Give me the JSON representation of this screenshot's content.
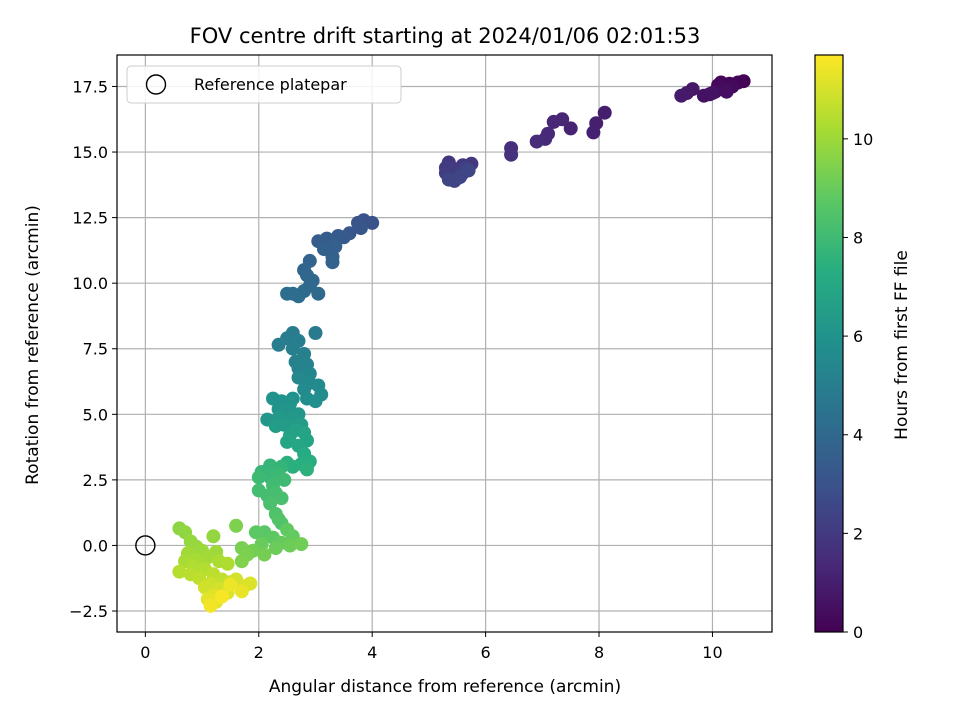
{
  "chart_data": {
    "type": "scatter",
    "title": "FOV centre drift starting at 2024/01/06 02:01:53",
    "xlabel": "Angular distance from reference (arcmin)",
    "ylabel": "Rotation from reference (arcmin)",
    "xlim": [
      -0.5,
      11.05
    ],
    "ylim": [
      -3.3,
      18.7
    ],
    "xticks": [
      0,
      2,
      4,
      6,
      8,
      10
    ],
    "xtick_labels": [
      "0",
      "2",
      "4",
      "6",
      "8",
      "10"
    ],
    "yticks": [
      -2.5,
      0.0,
      2.5,
      5.0,
      7.5,
      10.0,
      12.5,
      15.0,
      17.5
    ],
    "ytick_labels": [
      "−2.5",
      "0.0",
      "2.5",
      "5.0",
      "7.5",
      "10.0",
      "12.5",
      "15.0",
      "17.5"
    ],
    "grid": true,
    "legend": {
      "placement": "upper-left",
      "entries": [
        {
          "label": "Reference platepar",
          "marker": "open-circle"
        }
      ]
    },
    "reference_point": {
      "x": 0.0,
      "y": 0.0
    },
    "colorbar": {
      "label": "Hours from first FF file",
      "range": [
        0,
        11.7
      ],
      "ticks": [
        0,
        2,
        4,
        6,
        8,
        10
      ],
      "tick_labels": [
        "0",
        "2",
        "4",
        "6",
        "8",
        "10"
      ],
      "colormap": "viridis"
    },
    "series": [
      {
        "points": [
          {
            "x": 10.55,
            "y": 17.7,
            "t": 0.05
          },
          {
            "x": 10.45,
            "y": 17.65,
            "t": 0.1
          },
          {
            "x": 10.3,
            "y": 17.6,
            "t": 0.15
          },
          {
            "x": 10.15,
            "y": 17.65,
            "t": 0.2
          },
          {
            "x": 10.1,
            "y": 17.55,
            "t": 0.25
          },
          {
            "x": 10.35,
            "y": 17.5,
            "t": 0.3
          },
          {
            "x": 10.2,
            "y": 17.4,
            "t": 0.35
          },
          {
            "x": 10.05,
            "y": 17.3,
            "t": 0.4
          },
          {
            "x": 10.25,
            "y": 17.3,
            "t": 0.45
          },
          {
            "x": 9.95,
            "y": 17.2,
            "t": 0.5
          },
          {
            "x": 9.85,
            "y": 17.15,
            "t": 0.55
          },
          {
            "x": 10.0,
            "y": 17.25,
            "t": 0.6
          },
          {
            "x": 9.65,
            "y": 17.4,
            "t": 0.75
          },
          {
            "x": 9.55,
            "y": 17.25,
            "t": 0.8
          },
          {
            "x": 9.45,
            "y": 17.15,
            "t": 0.85
          },
          {
            "x": 8.1,
            "y": 16.5,
            "t": 1.0
          },
          {
            "x": 7.95,
            "y": 16.1,
            "t": 1.05
          },
          {
            "x": 7.9,
            "y": 15.75,
            "t": 1.1
          },
          {
            "x": 7.5,
            "y": 15.9,
            "t": 1.2
          },
          {
            "x": 7.35,
            "y": 16.25,
            "t": 1.25
          },
          {
            "x": 7.2,
            "y": 16.15,
            "t": 1.3
          },
          {
            "x": 7.1,
            "y": 15.7,
            "t": 1.35
          },
          {
            "x": 7.05,
            "y": 15.5,
            "t": 1.4
          },
          {
            "x": 6.9,
            "y": 15.4,
            "t": 1.45
          },
          {
            "x": 6.45,
            "y": 15.15,
            "t": 1.6
          },
          {
            "x": 6.45,
            "y": 14.9,
            "t": 1.65
          },
          {
            "x": 5.75,
            "y": 14.55,
            "t": 1.85
          },
          {
            "x": 5.6,
            "y": 14.5,
            "t": 1.9
          },
          {
            "x": 5.35,
            "y": 14.6,
            "t": 1.95
          },
          {
            "x": 5.3,
            "y": 14.4,
            "t": 2.0
          },
          {
            "x": 5.45,
            "y": 14.35,
            "t": 2.05
          },
          {
            "x": 5.3,
            "y": 14.2,
            "t": 2.1
          },
          {
            "x": 5.4,
            "y": 14.1,
            "t": 2.15
          },
          {
            "x": 5.5,
            "y": 14.0,
            "t": 2.2
          },
          {
            "x": 5.6,
            "y": 14.2,
            "t": 2.25
          },
          {
            "x": 5.65,
            "y": 14.4,
            "t": 2.3
          },
          {
            "x": 5.45,
            "y": 13.9,
            "t": 2.35
          },
          {
            "x": 5.35,
            "y": 13.95,
            "t": 2.4
          },
          {
            "x": 5.55,
            "y": 14.05,
            "t": 2.45
          },
          {
            "x": 5.7,
            "y": 14.3,
            "t": 2.5
          },
          {
            "x": 4.0,
            "y": 12.3,
            "t": 3.0
          },
          {
            "x": 3.85,
            "y": 12.4,
            "t": 3.05
          },
          {
            "x": 3.75,
            "y": 12.3,
            "t": 3.1
          },
          {
            "x": 3.8,
            "y": 12.1,
            "t": 3.15
          },
          {
            "x": 3.6,
            "y": 11.9,
            "t": 3.2
          },
          {
            "x": 3.5,
            "y": 11.75,
            "t": 3.3
          },
          {
            "x": 3.4,
            "y": 11.8,
            "t": 3.35
          },
          {
            "x": 3.3,
            "y": 11.6,
            "t": 3.4
          },
          {
            "x": 3.2,
            "y": 11.7,
            "t": 3.45
          },
          {
            "x": 3.05,
            "y": 11.6,
            "t": 3.5
          },
          {
            "x": 3.35,
            "y": 11.4,
            "t": 3.55
          },
          {
            "x": 3.15,
            "y": 11.3,
            "t": 3.6
          },
          {
            "x": 3.3,
            "y": 11.0,
            "t": 3.65
          },
          {
            "x": 3.3,
            "y": 10.8,
            "t": 3.7
          },
          {
            "x": 2.9,
            "y": 10.85,
            "t": 3.8
          },
          {
            "x": 2.8,
            "y": 10.5,
            "t": 3.85
          },
          {
            "x": 2.85,
            "y": 10.3,
            "t": 3.9
          },
          {
            "x": 2.95,
            "y": 10.1,
            "t": 3.95
          },
          {
            "x": 2.9,
            "y": 9.9,
            "t": 4.0
          },
          {
            "x": 3.05,
            "y": 9.6,
            "t": 4.05
          },
          {
            "x": 2.8,
            "y": 9.7,
            "t": 4.1
          },
          {
            "x": 2.7,
            "y": 9.5,
            "t": 4.15
          },
          {
            "x": 2.6,
            "y": 9.6,
            "t": 4.2
          },
          {
            "x": 2.5,
            "y": 9.6,
            "t": 4.25
          },
          {
            "x": 3.0,
            "y": 8.1,
            "t": 4.8
          },
          {
            "x": 2.6,
            "y": 8.1,
            "t": 4.85
          },
          {
            "x": 2.5,
            "y": 7.9,
            "t": 4.9
          },
          {
            "x": 2.35,
            "y": 7.65,
            "t": 4.95
          },
          {
            "x": 2.7,
            "y": 7.8,
            "t": 5.0
          },
          {
            "x": 2.6,
            "y": 7.5,
            "t": 5.05
          },
          {
            "x": 2.8,
            "y": 7.3,
            "t": 5.1
          },
          {
            "x": 2.65,
            "y": 7.0,
            "t": 5.15
          },
          {
            "x": 2.85,
            "y": 6.9,
            "t": 5.2
          },
          {
            "x": 2.7,
            "y": 6.75,
            "t": 5.25
          },
          {
            "x": 2.9,
            "y": 6.55,
            "t": 5.4
          },
          {
            "x": 2.7,
            "y": 6.4,
            "t": 5.45
          },
          {
            "x": 2.9,
            "y": 6.2,
            "t": 5.5
          },
          {
            "x": 3.05,
            "y": 6.1,
            "t": 5.55
          },
          {
            "x": 2.8,
            "y": 5.95,
            "t": 5.6
          },
          {
            "x": 3.1,
            "y": 5.75,
            "t": 5.65
          },
          {
            "x": 2.85,
            "y": 5.6,
            "t": 5.7
          },
          {
            "x": 3.0,
            "y": 5.5,
            "t": 5.75
          },
          {
            "x": 2.6,
            "y": 5.6,
            "t": 5.9
          },
          {
            "x": 2.4,
            "y": 5.5,
            "t": 5.95
          },
          {
            "x": 2.25,
            "y": 5.6,
            "t": 6.0
          },
          {
            "x": 2.55,
            "y": 5.4,
            "t": 6.05
          },
          {
            "x": 2.35,
            "y": 5.2,
            "t": 6.1
          },
          {
            "x": 2.5,
            "y": 5.1,
            "t": 6.15
          },
          {
            "x": 2.7,
            "y": 5.0,
            "t": 6.2
          },
          {
            "x": 2.15,
            "y": 4.8,
            "t": 6.25
          },
          {
            "x": 2.35,
            "y": 4.85,
            "t": 6.3
          },
          {
            "x": 2.6,
            "y": 4.8,
            "t": 6.35
          },
          {
            "x": 2.45,
            "y": 4.6,
            "t": 6.4
          },
          {
            "x": 2.3,
            "y": 4.55,
            "t": 6.45
          },
          {
            "x": 2.75,
            "y": 4.6,
            "t": 6.5
          },
          {
            "x": 2.65,
            "y": 4.4,
            "t": 6.7
          },
          {
            "x": 2.55,
            "y": 4.2,
            "t": 6.75
          },
          {
            "x": 2.8,
            "y": 4.3,
            "t": 6.8
          },
          {
            "x": 2.85,
            "y": 4.0,
            "t": 6.85
          },
          {
            "x": 2.5,
            "y": 3.95,
            "t": 6.9
          },
          {
            "x": 2.7,
            "y": 3.8,
            "t": 6.95
          },
          {
            "x": 2.8,
            "y": 3.5,
            "t": 7.2
          },
          {
            "x": 2.9,
            "y": 3.2,
            "t": 7.3
          },
          {
            "x": 2.75,
            "y": 3.1,
            "t": 7.35
          },
          {
            "x": 2.6,
            "y": 3.0,
            "t": 7.4
          },
          {
            "x": 2.5,
            "y": 3.15,
            "t": 7.45
          },
          {
            "x": 2.85,
            "y": 2.9,
            "t": 7.5
          },
          {
            "x": 2.4,
            "y": 3.0,
            "t": 7.7
          },
          {
            "x": 2.2,
            "y": 3.05,
            "t": 7.75
          },
          {
            "x": 2.05,
            "y": 2.8,
            "t": 7.8
          },
          {
            "x": 2.2,
            "y": 2.6,
            "t": 7.85
          },
          {
            "x": 2.35,
            "y": 2.7,
            "t": 7.9
          },
          {
            "x": 2.0,
            "y": 2.6,
            "t": 7.95
          },
          {
            "x": 2.45,
            "y": 2.5,
            "t": 8.0
          },
          {
            "x": 2.25,
            "y": 2.3,
            "t": 8.05
          },
          {
            "x": 2.0,
            "y": 2.1,
            "t": 8.1
          },
          {
            "x": 2.15,
            "y": 1.9,
            "t": 8.15
          },
          {
            "x": 2.3,
            "y": 2.0,
            "t": 8.2
          },
          {
            "x": 2.4,
            "y": 1.8,
            "t": 8.25
          },
          {
            "x": 2.2,
            "y": 1.6,
            "t": 8.3
          },
          {
            "x": 2.3,
            "y": 1.2,
            "t": 8.4
          },
          {
            "x": 2.4,
            "y": 0.85,
            "t": 8.45
          },
          {
            "x": 2.35,
            "y": 1.0,
            "t": 8.5
          },
          {
            "x": 2.1,
            "y": 0.5,
            "t": 8.7
          },
          {
            "x": 1.95,
            "y": 0.5,
            "t": 8.75
          },
          {
            "x": 2.25,
            "y": 0.3,
            "t": 8.8
          },
          {
            "x": 2.5,
            "y": 0.6,
            "t": 8.85
          },
          {
            "x": 2.6,
            "y": 0.35,
            "t": 8.9
          },
          {
            "x": 2.4,
            "y": 0.1,
            "t": 8.95
          },
          {
            "x": 2.05,
            "y": 0.05,
            "t": 9.0
          },
          {
            "x": 2.3,
            "y": -0.1,
            "t": 9.05
          },
          {
            "x": 2.55,
            "y": 0.0,
            "t": 9.1
          },
          {
            "x": 2.75,
            "y": 0.05,
            "t": 9.15
          },
          {
            "x": 1.9,
            "y": -0.2,
            "t": 9.2
          },
          {
            "x": 2.1,
            "y": -0.35,
            "t": 9.25
          },
          {
            "x": 1.7,
            "y": -0.1,
            "t": 9.3
          },
          {
            "x": 1.8,
            "y": -0.35,
            "t": 9.35
          },
          {
            "x": 1.6,
            "y": 0.75,
            "t": 9.4
          },
          {
            "x": 1.7,
            "y": -0.6,
            "t": 9.45
          },
          {
            "x": 0.6,
            "y": 0.65,
            "t": 9.7
          },
          {
            "x": 0.7,
            "y": 0.5,
            "t": 9.75
          },
          {
            "x": 1.2,
            "y": 0.35,
            "t": 9.8
          },
          {
            "x": 0.8,
            "y": 0.15,
            "t": 9.85
          },
          {
            "x": 0.9,
            "y": -0.05,
            "t": 9.9
          },
          {
            "x": 1.0,
            "y": -0.2,
            "t": 9.95
          },
          {
            "x": 1.25,
            "y": -0.25,
            "t": 10.0
          },
          {
            "x": 0.75,
            "y": -0.3,
            "t": 10.05
          },
          {
            "x": 1.1,
            "y": -0.45,
            "t": 10.1
          },
          {
            "x": 0.9,
            "y": -0.55,
            "t": 10.15
          },
          {
            "x": 0.7,
            "y": -0.6,
            "t": 10.2
          },
          {
            "x": 1.3,
            "y": -0.6,
            "t": 10.25
          },
          {
            "x": 1.45,
            "y": -0.7,
            "t": 10.3
          },
          {
            "x": 0.85,
            "y": -0.8,
            "t": 10.35
          },
          {
            "x": 1.05,
            "y": -0.9,
            "t": 10.4
          },
          {
            "x": 0.6,
            "y": -1.0,
            "t": 10.45
          },
          {
            "x": 0.8,
            "y": -1.1,
            "t": 10.5
          },
          {
            "x": 1.2,
            "y": -1.1,
            "t": 10.55
          },
          {
            "x": 0.95,
            "y": -1.25,
            "t": 10.6
          },
          {
            "x": 1.35,
            "y": -1.3,
            "t": 10.65
          },
          {
            "x": 1.15,
            "y": -1.45,
            "t": 10.8
          },
          {
            "x": 1.5,
            "y": -1.4,
            "t": 10.85
          },
          {
            "x": 1.05,
            "y": -1.6,
            "t": 10.9
          },
          {
            "x": 1.3,
            "y": -1.65,
            "t": 10.95
          },
          {
            "x": 1.6,
            "y": -1.3,
            "t": 11.0
          },
          {
            "x": 1.75,
            "y": -1.55,
            "t": 11.05
          },
          {
            "x": 1.85,
            "y": -1.45,
            "t": 11.1
          },
          {
            "x": 1.45,
            "y": -1.8,
            "t": 11.15
          },
          {
            "x": 1.2,
            "y": -1.9,
            "t": 11.2
          },
          {
            "x": 1.1,
            "y": -2.05,
            "t": 11.25
          },
          {
            "x": 1.25,
            "y": -2.15,
            "t": 11.3
          },
          {
            "x": 1.7,
            "y": -1.75,
            "t": 11.35
          },
          {
            "x": 1.5,
            "y": -1.5,
            "t": 11.4
          },
          {
            "x": 1.15,
            "y": -2.3,
            "t": 11.5
          },
          {
            "x": 1.35,
            "y": -1.95,
            "t": 11.6
          }
        ]
      }
    ]
  }
}
